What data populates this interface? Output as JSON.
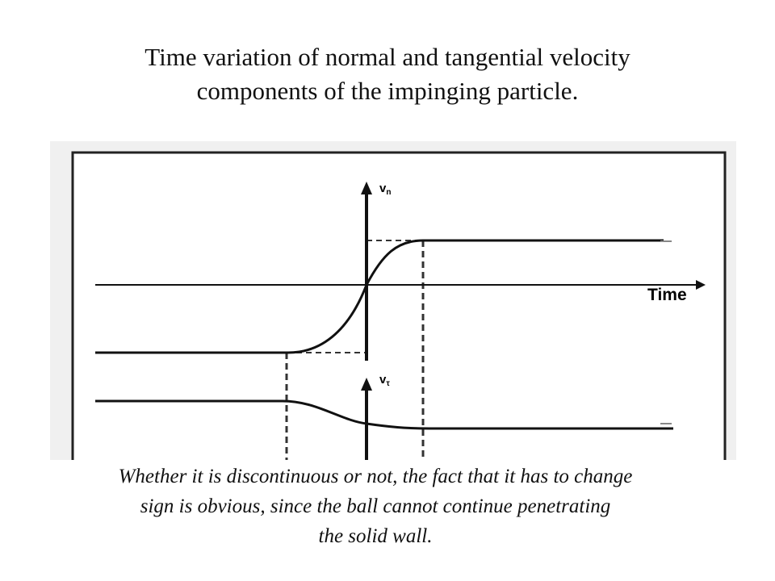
{
  "slide": {
    "title_line1": "Time variation of normal and tangential velocity",
    "title_line2": "components of the impinging particle.",
    "caption_line1": "Whether it is discontinuous or not, the fact that it has to change",
    "caption_line2": "sign is obvious, since the ball cannot continue penetrating",
    "caption_line3": "the solid wall."
  },
  "diagram": {
    "time_label": "Time",
    "vn_label": "v",
    "vn_subscript": "n",
    "vt_label": "v",
    "vt_subscript": "τ"
  }
}
